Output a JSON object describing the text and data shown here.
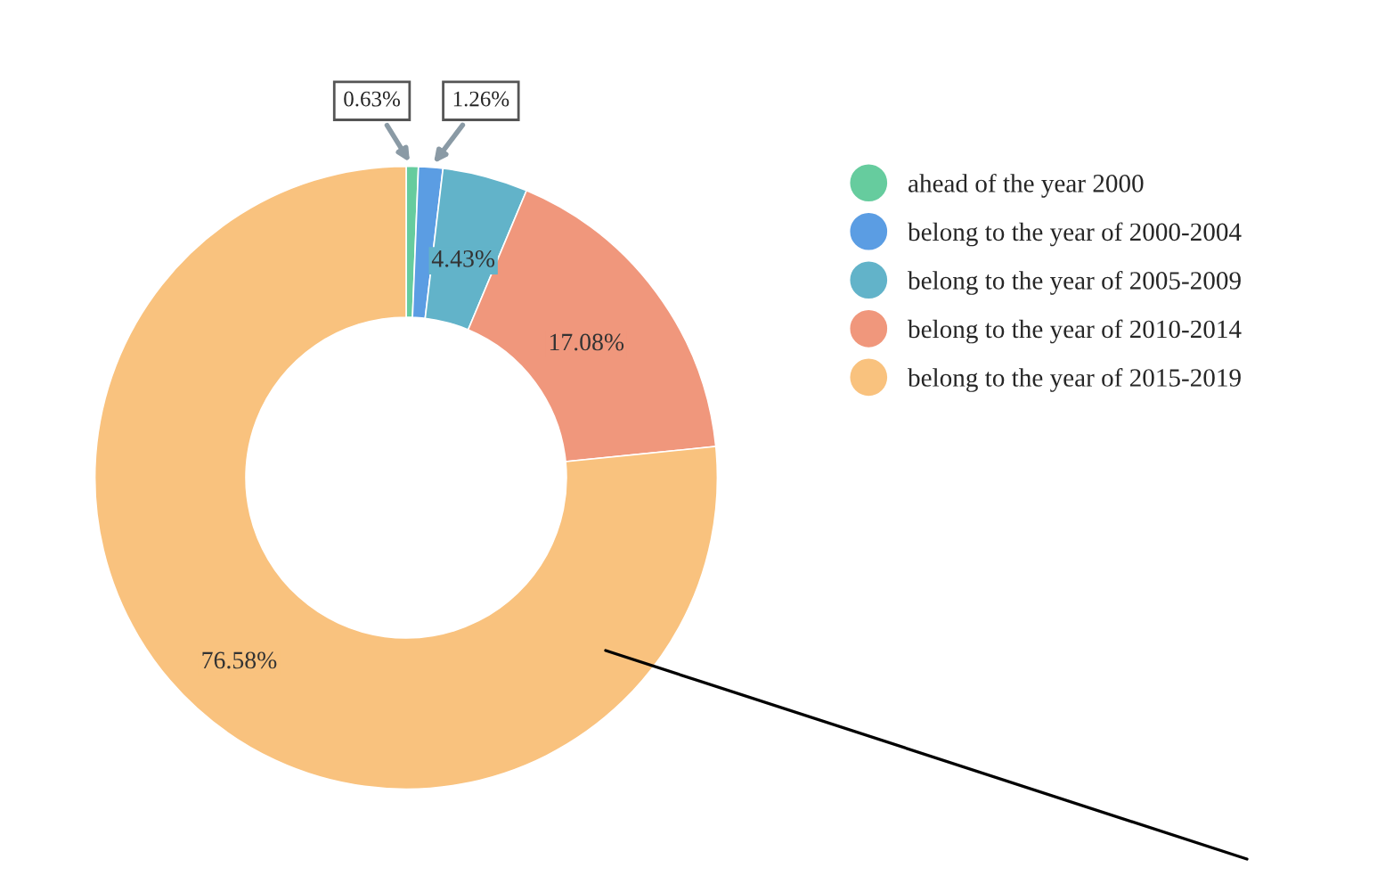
{
  "chart_data": {
    "type": "donut",
    "categories": [
      "ahead of the year 2000",
      "belong to the year of 2000-2004",
      "belong to the year of 2005-2009",
      "belong to the year of 2010-2014",
      "belong to the year of 2015-2019"
    ],
    "values": [
      0.63,
      1.26,
      4.43,
      17.08,
      76.58
    ],
    "colors": [
      "#66cc9e",
      "#5b9de3",
      "#62b3c9",
      "#f0977c",
      "#f9c27e"
    ],
    "value_labels": [
      "0.63%",
      "1.26%",
      "4.43%",
      "17.08%",
      "76.58%"
    ],
    "legend": "right"
  }
}
